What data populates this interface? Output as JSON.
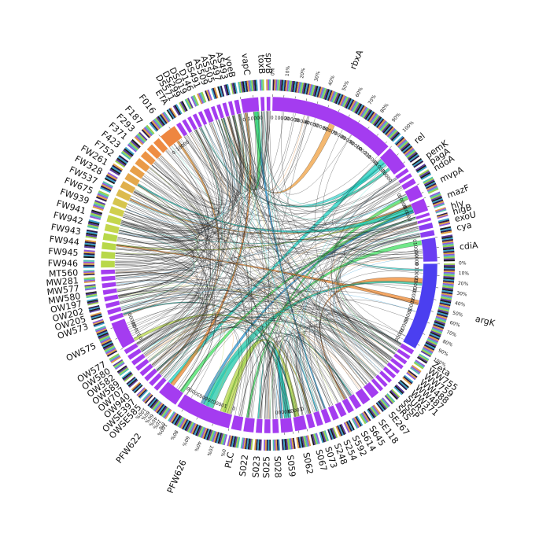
{
  "diagram": {
    "type": "chord-circos",
    "segments": [
      {
        "label": "rbxA",
        "color": "#a43cf0",
        "weight": 16,
        "ticks": [
          "0",
          "10000",
          "20000",
          "30000",
          "40000",
          "50000",
          "60000",
          "70000",
          "80000",
          "90000",
          "100000",
          "110000"
        ],
        "pct": [
          "0%",
          "10%",
          "20%",
          "30%",
          "40%",
          "50%",
          "60%",
          "70%",
          "80%",
          "90%",
          "100%"
        ]
      },
      {
        "label": "rel",
        "color": "#a43cf0",
        "weight": 3,
        "ticks": [
          "0",
          "10000",
          "20000"
        ]
      },
      {
        "label": "pemK",
        "color": "#a43cf0",
        "weight": 0.5
      },
      {
        "label": "pagA",
        "color": "#a43cf0",
        "weight": 0.5
      },
      {
        "label": "ndoA",
        "color": "#a43cf0",
        "weight": 0.7
      },
      {
        "label": "mvpA",
        "color": "#a43cf0",
        "weight": 1.6,
        "ticks": [
          "0",
          "10000"
        ]
      },
      {
        "label": "mazF",
        "color": "#a43cf0",
        "weight": 1.6,
        "ticks": [
          "0",
          "10000"
        ]
      },
      {
        "label": "hly",
        "color": "#a43cf0",
        "weight": 0.4
      },
      {
        "label": "higB",
        "color": "#a43cf0",
        "weight": 0.4
      },
      {
        "label": "exoU",
        "color": "#8b3df2",
        "weight": 0.7
      },
      {
        "label": "cya",
        "color": "#8b3df2",
        "weight": 0.7
      },
      {
        "label": "cdiA",
        "color": "#6a3ef2",
        "weight": 3,
        "ticks": [
          "0",
          "10000",
          "20000"
        ]
      },
      {
        "label": "argK",
        "color": "#4b3ff0",
        "weight": 11,
        "ticks": [
          "0",
          "10000",
          "20000",
          "30000",
          "40000",
          "50000",
          "60000",
          "70000"
        ],
        "pct": [
          "0%",
          "10%",
          "20%",
          "30%",
          "40%",
          "50%",
          "60%",
          "70%",
          "80%",
          "90%",
          "100%"
        ]
      },
      {
        "label": "Zeta",
        "color": "#a43cf0",
        "weight": 0.6
      },
      {
        "label": "WW755",
        "color": "#a43cf0",
        "weight": 0.5
      },
      {
        "label": "WW759",
        "color": "#a43cf0",
        "weight": 0.5
      },
      {
        "label": "WW488",
        "color": "#a43cf0",
        "weight": 0.5
      },
      {
        "label": "WW487",
        "color": "#a43cf0",
        "weight": 0.5
      },
      {
        "label": "WW371",
        "color": "#a43cf0",
        "weight": 0.5
      },
      {
        "label": "SURS",
        "color": "#a43cf0",
        "weight": 0.5
      },
      {
        "label": "SSSP",
        "color": "#a43cf0",
        "weight": 0.5
      },
      {
        "label": "SRS",
        "color": "#a43cf0",
        "weight": 0.5
      },
      {
        "label": "SE267",
        "color": "#a43cf0",
        "weight": 1.1
      },
      {
        "label": "SE118",
        "color": "#a43cf0",
        "weight": 1.1
      },
      {
        "label": "S645",
        "color": "#a43cf0",
        "weight": 0.8
      },
      {
        "label": "S614",
        "color": "#a43cf0",
        "weight": 0.8
      },
      {
        "label": "S592",
        "color": "#a43cf0",
        "weight": 0.8
      },
      {
        "label": "S254",
        "color": "#a43cf0",
        "weight": 0.8
      },
      {
        "label": "S248",
        "color": "#a43cf0",
        "weight": 0.8
      },
      {
        "label": "S073",
        "color": "#a43cf0",
        "weight": 0.8
      },
      {
        "label": "S067",
        "color": "#a43cf0",
        "weight": 0.8
      },
      {
        "label": "S062",
        "color": "#a43cf0",
        "weight": 1.5,
        "ticks": [
          "0",
          "10000"
        ]
      },
      {
        "label": "S059",
        "color": "#a43cf0",
        "weight": 1.5,
        "ticks": [
          "0",
          "10000"
        ]
      },
      {
        "label": "S028",
        "color": "#a43cf0",
        "weight": 0.8
      },
      {
        "label": "S025",
        "color": "#a43cf0",
        "weight": 0.8
      },
      {
        "label": "S023",
        "color": "#a43cf0",
        "weight": 0.8
      },
      {
        "label": "S022",
        "color": "#a43cf0",
        "weight": 1.3
      },
      {
        "label": "PLC",
        "color": "#a43cf0",
        "weight": 1.3
      },
      {
        "label": "PFW626",
        "color": "#a43cf0",
        "weight": 7,
        "ticks": [
          "0",
          "10000",
          "20000",
          "30000"
        ],
        "pct": [
          "0%",
          "20%",
          "40%",
          "60%",
          "80%",
          "100%"
        ]
      },
      {
        "label": "PFW622",
        "color": "#a43cf0",
        "weight": 2.6,
        "pct": [
          "0%",
          "20%",
          "40%",
          "60%",
          "80%",
          "100%"
        ]
      },
      {
        "label": "OWSE585",
        "color": "#a43cf0",
        "weight": 0.6
      },
      {
        "label": "OWSE397",
        "color": "#a43cf0",
        "weight": 0.6
      },
      {
        "label": "OW940",
        "color": "#a43cf0",
        "weight": 0.6
      },
      {
        "label": "OW707",
        "color": "#a43cf0",
        "weight": 0.6
      },
      {
        "label": "OW589",
        "color": "#a43cf0",
        "weight": 0.6
      },
      {
        "label": "OW582",
        "color": "#a43cf0",
        "weight": 0.6
      },
      {
        "label": "OW580",
        "color": "#a43cf0",
        "weight": 0.6
      },
      {
        "label": "OW577",
        "color": "#a43cf0",
        "weight": 0.6
      },
      {
        "label": "OW575",
        "color": "#a43cf0",
        "weight": 3.4,
        "ticks": [
          "0",
          "10000",
          "20000"
        ]
      },
      {
        "label": "OW573",
        "color": "#a43cf0",
        "weight": 0.6
      },
      {
        "label": "OW205",
        "color": "#a43cf0",
        "weight": 0.6
      },
      {
        "label": "OW202",
        "color": "#a43cf0",
        "weight": 0.6
      },
      {
        "label": "OW197",
        "color": "#a43cf0",
        "weight": 0.6
      },
      {
        "label": "MW580",
        "color": "#a43cf0",
        "weight": 0.6
      },
      {
        "label": "MW577",
        "color": "#a43cf0",
        "weight": 0.6
      },
      {
        "label": "MW281",
        "color": "#a43cf0",
        "weight": 0.6
      },
      {
        "label": "MT560",
        "color": "#a43cf0",
        "weight": 0.6
      },
      {
        "label": "FW946",
        "color": "#b8d84a",
        "weight": 0.9
      },
      {
        "label": "FW945",
        "color": "#b8d84a",
        "weight": 0.9
      },
      {
        "label": "FW944",
        "color": "#b8d84a",
        "weight": 0.9
      },
      {
        "label": "FW943",
        "color": "#b8d84a",
        "weight": 0.9
      },
      {
        "label": "FW942",
        "color": "#c4d64c",
        "weight": 0.9
      },
      {
        "label": "FW941",
        "color": "#c4d64c",
        "weight": 0.9
      },
      {
        "label": "FW939",
        "color": "#d0cf4e",
        "weight": 0.9
      },
      {
        "label": "FW675",
        "color": "#d6c54e",
        "weight": 0.9
      },
      {
        "label": "FW537",
        "color": "#dcbb4e",
        "weight": 0.9
      },
      {
        "label": "FW328",
        "color": "#e0b04c",
        "weight": 0.9
      },
      {
        "label": "FW261",
        "color": "#e4a84c",
        "weight": 0.9
      },
      {
        "label": "F752",
        "color": "#e8a04a",
        "weight": 0.9
      },
      {
        "label": "F423",
        "color": "#ea9a48",
        "weight": 0.9
      },
      {
        "label": "F371",
        "color": "#ec9446",
        "weight": 0.9
      },
      {
        "label": "F293",
        "color": "#ee8e44",
        "weight": 0.9
      },
      {
        "label": "F187",
        "color": "#ee8a42",
        "weight": 0.9
      },
      {
        "label": "F016",
        "color": "#ee8640",
        "weight": 2.2,
        "ticks": [
          "0",
          "10000"
        ]
      },
      {
        "label": "ETA",
        "color": "#a43cf0",
        "weight": 0.6
      },
      {
        "label": "DS571",
        "color": "#a43cf0",
        "weight": 0.5
      },
      {
        "label": "DS299",
        "color": "#a43cf0",
        "weight": 0.5
      },
      {
        "label": "DS019",
        "color": "#a43cf0",
        "weight": 0.5
      },
      {
        "label": "D146",
        "color": "#a43cf0",
        "weight": 0.5
      },
      {
        "label": "BS491",
        "color": "#a43cf0",
        "weight": 0.7
      },
      {
        "label": "AS509",
        "color": "#a43cf0",
        "weight": 0.5
      },
      {
        "label": "AS505",
        "color": "#a43cf0",
        "weight": 0.5
      },
      {
        "label": "AS497",
        "color": "#a43cf0",
        "weight": 0.5
      },
      {
        "label": "AS493",
        "color": "#a43cf0",
        "weight": 0.5
      },
      {
        "label": "yoeB",
        "color": "#a43cf0",
        "weight": 0.6
      },
      {
        "label": "vapC",
        "color": "#a43cf0",
        "weight": 2.2,
        "ticks": [
          "0",
          "10000"
        ]
      },
      {
        "label": "toxB",
        "color": "#a43cf0",
        "weight": 0.5
      },
      {
        "label": "spvB",
        "color": "#a43cf0",
        "weight": 0.5
      }
    ],
    "ribbon_colors": [
      "#1ad0c0",
      "#3fe060",
      "#40d8d0",
      "#f08a30",
      "#2a9ad8",
      "#b8d84a",
      "#20c8a8",
      "#f0a040"
    ]
  }
}
